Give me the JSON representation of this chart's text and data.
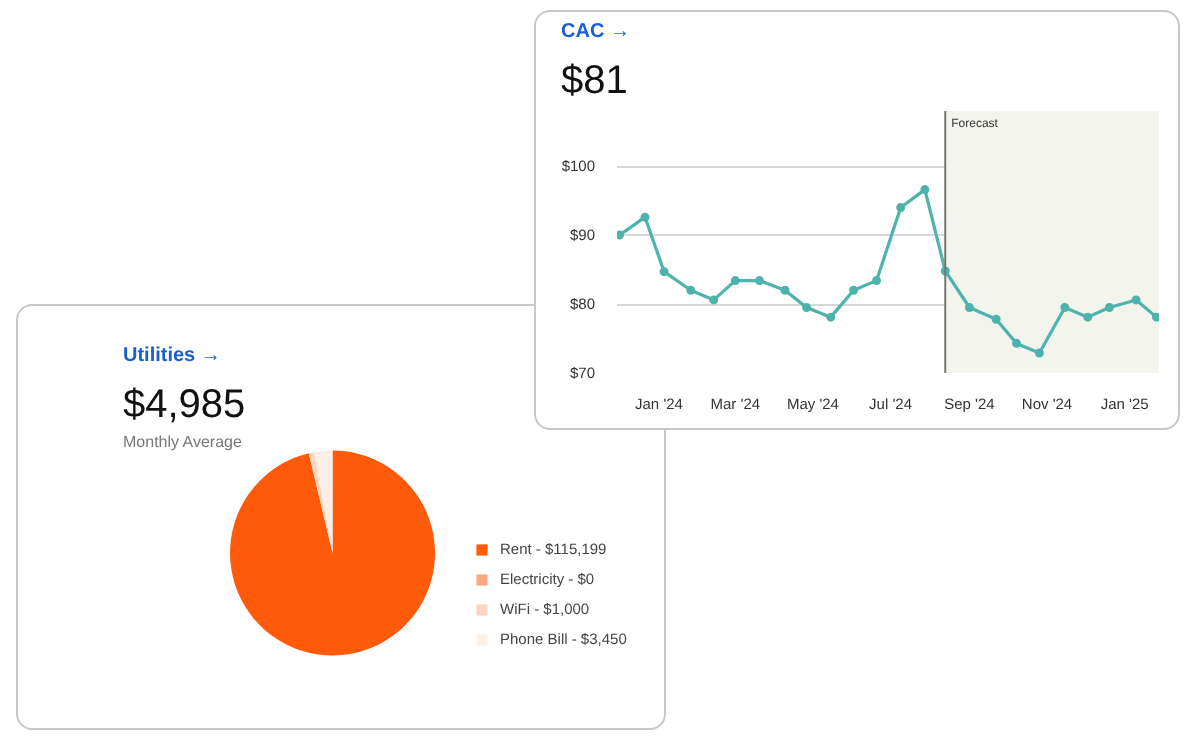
{
  "chart_data": [
    {
      "type": "line",
      "title": "CAC →",
      "subtitle": "$81",
      "x": [
        "2023-12-01",
        "2023-12-21",
        "2024-01-05",
        "2024-01-26",
        "2024-02-13",
        "2024-03-01",
        "2024-03-20",
        "2024-04-09",
        "2024-04-26",
        "2024-05-15",
        "2024-06-02",
        "2024-06-20",
        "2024-07-09",
        "2024-07-28",
        "2024-08-13",
        "2024-09-01",
        "2024-09-22",
        "2024-10-08",
        "2024-10-26",
        "2024-11-15",
        "2024-12-03",
        "2024-12-20",
        "2025-01-10",
        "2025-01-26"
      ],
      "series": [
        {
          "color": "#4db3ac",
          "values": [
            90,
            92.6,
            84.7,
            82,
            80.6,
            83.4,
            83.4,
            82,
            79.5,
            78.1,
            82,
            83.4,
            94,
            96.6,
            84.8,
            79.5,
            77.8,
            74.3,
            72.9,
            79.5,
            78.1,
            79.5,
            80.6,
            78.1
          ]
        }
      ],
      "xlim": [
        "2023-11-29",
        "2025-01-28"
      ],
      "xticks": [
        {
          "value": "2024-01-01",
          "label": "Jan '24"
        },
        {
          "value": "2024-03-01",
          "label": "Mar '24"
        },
        {
          "value": "2024-05-01",
          "label": "May '24"
        },
        {
          "value": "2024-07-01",
          "label": "Jul '24"
        },
        {
          "value": "2024-09-01",
          "label": "Sep '24"
        },
        {
          "value": "2024-11-01",
          "label": "Nov '24"
        },
        {
          "value": "2025-01-01",
          "label": "Jan '25"
        }
      ],
      "ylim": [
        70,
        108
      ],
      "yticks": [
        {
          "value": 70,
          "label": "$70"
        },
        {
          "value": 80,
          "label": "$80"
        },
        {
          "value": 90,
          "label": "$90"
        },
        {
          "value": 100,
          "label": "$100"
        }
      ],
      "grid": "y",
      "marker": "circle",
      "line_style": "solid",
      "ref_lines": [
        {
          "axis": "x",
          "value": "2024-08-13",
          "label": "Forecast",
          "color": "#777777"
        }
      ],
      "bands": [
        {
          "axis": "x",
          "from": "2024-08-13",
          "to": "2025-01-28",
          "color": "#f4f4ee"
        }
      ]
    },
    {
      "type": "pie",
      "title": "Utilities →",
      "subtitle": "$4,985",
      "annotations": [
        "Monthly Average"
      ],
      "categories": [
        "Rent",
        "Electricity",
        "WiFi",
        "Phone Bill"
      ],
      "values": [
        115199,
        0,
        1000,
        3450
      ],
      "value_labels": [
        "$115,199",
        "$0",
        "$1,000",
        "$3,450"
      ],
      "colors": [
        "#ff5a0a",
        "#f9a882",
        "#fdd5c2",
        "#fdeee6"
      ],
      "legend": "right"
    }
  ]
}
